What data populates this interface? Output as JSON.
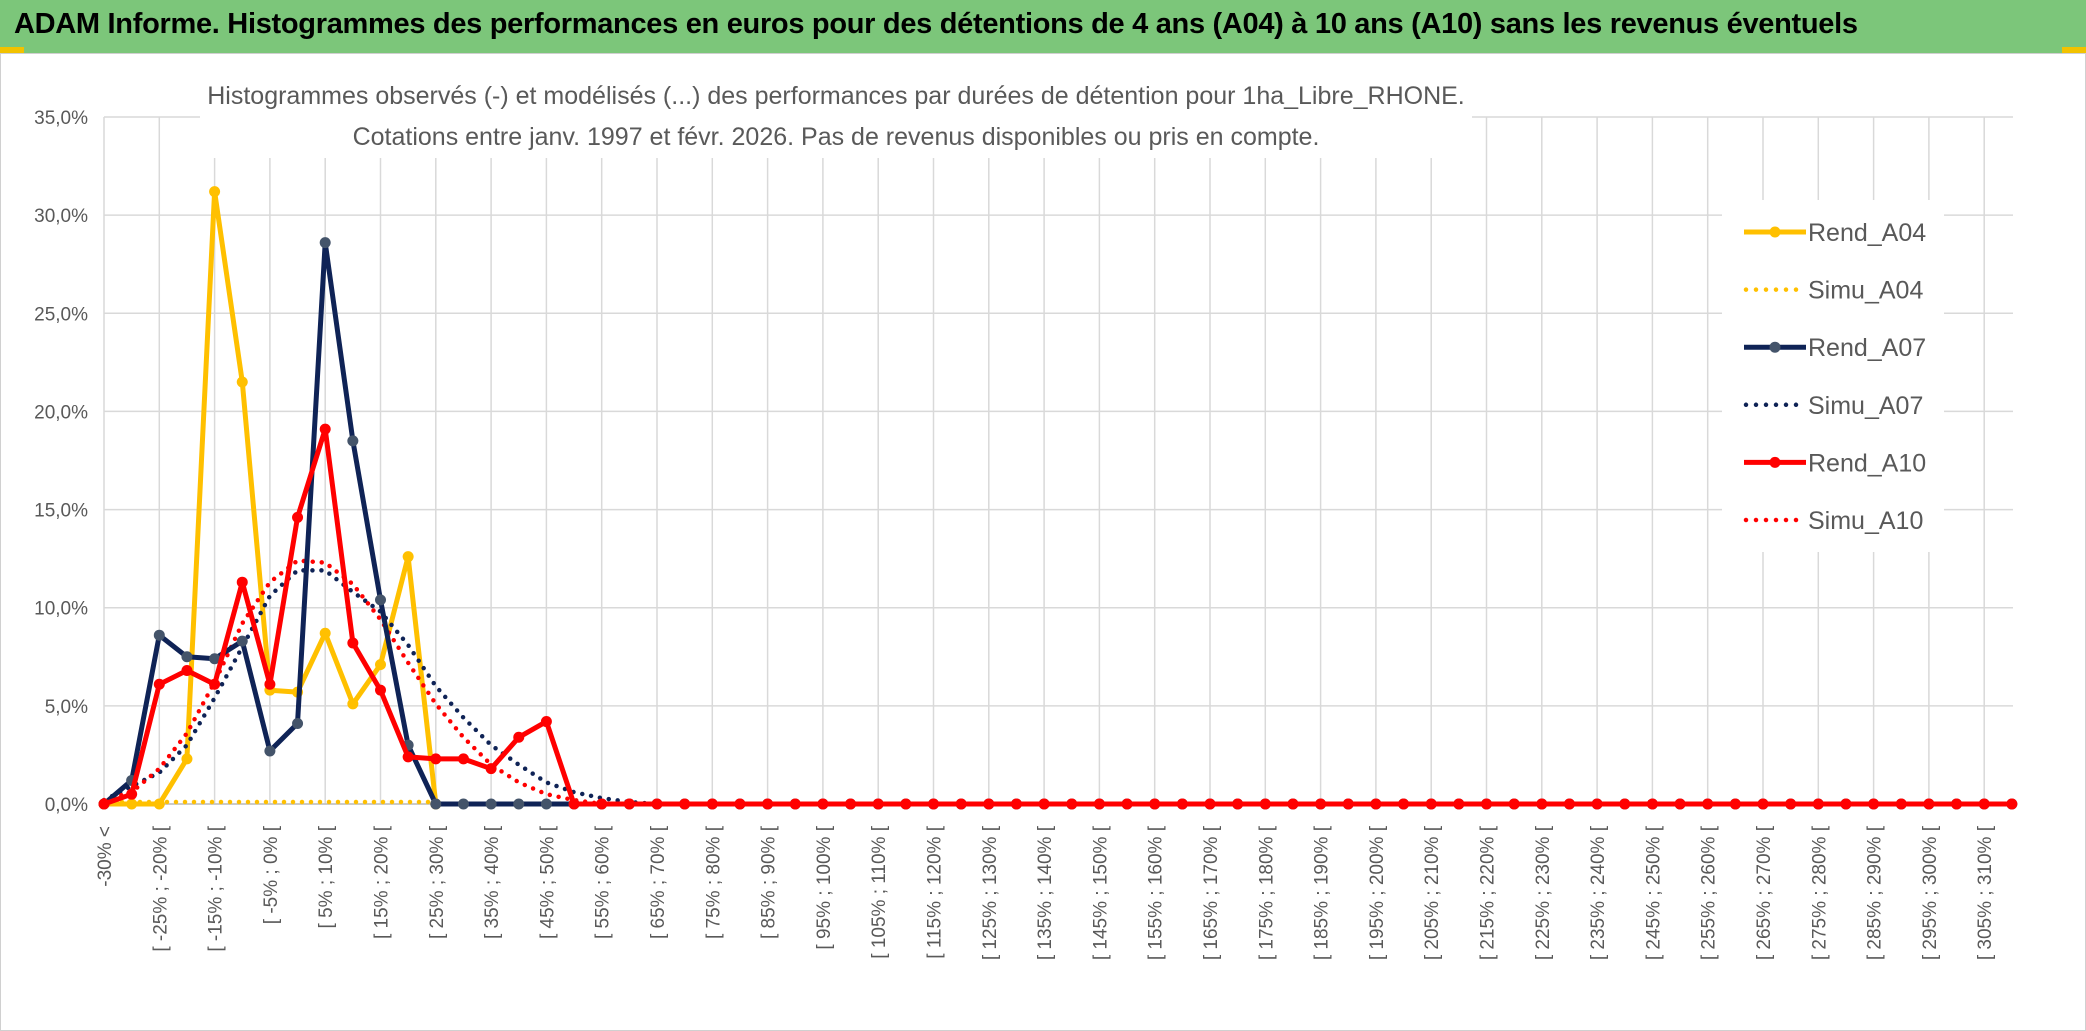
{
  "banner": {
    "title": "ADAM Informe. Histogrammes des performances en euros pour des détentions de 4 ans (A04) à 10 ans (A10) sans les revenus éventuels"
  },
  "chart_data": {
    "type": "line",
    "title": "Histogrammes observés (-) et modélisés (...) des performances par durées de détention pour 1ha_Libre_RHONE.",
    "subtitle": "Cotations entre janv. 1997 et févr. 2026. Pas de revenus disponibles ou pris en compte.",
    "xlabel": "",
    "ylabel": "",
    "ylim": [
      0,
      35
    ],
    "yticks": [
      "0,0%",
      "5,0%",
      "10,0%",
      "15,0%",
      "20,0%",
      "25,0%",
      "30,0%",
      "35,0%"
    ],
    "grid": true,
    "legend_position": "right",
    "x_tick_labels": [
      "-30% <",
      "[ -25% ; -20% [",
      "[ -15% ; -10% [",
      "[ -5% ; 0% [",
      "[ 5% ; 10% [",
      "[ 15% ; 20% [",
      "[ 25% ; 30% [",
      "[ 35% ; 40% [",
      "[ 45% ; 50% [",
      "[ 55% ; 60% [",
      "[ 65% ; 70% [",
      "[ 75% ; 80% [",
      "[ 85% ; 90% [",
      "[ 95% ; 100% [",
      "[ 105% ; 110% [",
      "[ 115% ; 120% [",
      "[ 125% ; 130% [",
      "[ 135% ; 140% [",
      "[ 145% ; 150% [",
      "[ 155% ; 160% [",
      "[ 165% ; 170% [",
      "[ 175% ; 180% [",
      "[ 185% ; 190% [",
      "[ 195% ; 200% [",
      "[ 205% ; 210% [",
      "[ 215% ; 220% [",
      "[ 225% ; 230% [",
      "[ 235% ; 240% [",
      "[ 245% ; 250% [",
      "[ 255% ; 260% [",
      "[ 265% ; 270% [",
      "[ 275% ; 280% [",
      "[ 285% ; 290% [",
      "[ 295% ; 300% [",
      "[ 305% ; 310% ["
    ],
    "series": [
      {
        "name": "Rend_A04",
        "color": "#ffc000",
        "style": "solid",
        "markers": true,
        "values": [
          0,
          0,
          0,
          2.3,
          31.2,
          21.5,
          5.8,
          5.7,
          8.7,
          5.1,
          7.1,
          12.6,
          0
        ]
      },
      {
        "name": "Simu_A04",
        "color": "#ffc000",
        "style": "dotted",
        "markers": false,
        "values": [
          0.1,
          0.1,
          0.1,
          0.1,
          0.1,
          0.1,
          0.1,
          0.1,
          0.1,
          0.1,
          0.1,
          0.1,
          0.1
        ]
      },
      {
        "name": "Rend_A07",
        "color": "#0f2356",
        "style": "solid",
        "markers": true,
        "values": [
          0,
          1.2,
          8.6,
          7.5,
          7.4,
          8.3,
          2.7,
          4.1,
          28.6,
          18.5,
          10.4,
          3,
          0,
          0,
          0,
          0,
          0,
          0,
          0,
          0,
          0,
          0,
          0,
          0,
          0,
          0,
          0,
          0,
          0,
          0,
          0,
          0,
          0,
          0,
          0,
          0,
          0,
          0,
          0,
          0,
          0,
          0,
          0,
          0,
          0,
          0,
          0,
          0,
          0,
          0,
          0,
          0,
          0,
          0,
          0,
          0,
          0,
          0,
          0,
          0,
          0,
          0,
          0,
          0,
          0,
          0,
          0,
          0,
          0,
          0
        ]
      },
      {
        "name": "Simu_A07",
        "color": "#0f2356",
        "style": "dotted",
        "markers": false,
        "values": [
          0.2,
          0.9,
          1.6,
          3,
          5.4,
          8,
          10.6,
          11.9,
          11.9,
          10.8,
          9.8,
          8.1,
          6,
          4.4,
          3,
          2,
          1.1,
          0.6,
          0.3,
          0.1,
          0,
          0,
          0
        ]
      },
      {
        "name": "Rend_A10",
        "color": "#ff0000",
        "style": "solid",
        "markers": true,
        "values": [
          0,
          0.5,
          6.1,
          6.8,
          6.1,
          11.3,
          6.1,
          14.6,
          19.1,
          8.2,
          5.8,
          2.4,
          2.3,
          2.3,
          1.8,
          3.4,
          4.2,
          0,
          0,
          0,
          0,
          0,
          0,
          0,
          0,
          0,
          0,
          0,
          0,
          0,
          0,
          0,
          0,
          0,
          0,
          0,
          0,
          0,
          0,
          0,
          0,
          0,
          0,
          0,
          0,
          0,
          0,
          0,
          0,
          0,
          0,
          0,
          0,
          0,
          0,
          0,
          0,
          0,
          0,
          0,
          0,
          0,
          0,
          0,
          0,
          0,
          0,
          0,
          0,
          0
        ]
      },
      {
        "name": "Simu_A10",
        "color": "#ff0000",
        "style": "dotted",
        "markers": false,
        "values": [
          0.2,
          0.6,
          1.8,
          3.6,
          6.2,
          9.2,
          11.3,
          12.4,
          12.3,
          11.2,
          9.4,
          7.2,
          5.1,
          3.4,
          2,
          1.1,
          0.5,
          0.2,
          0,
          0,
          0,
          0
        ]
      }
    ]
  }
}
